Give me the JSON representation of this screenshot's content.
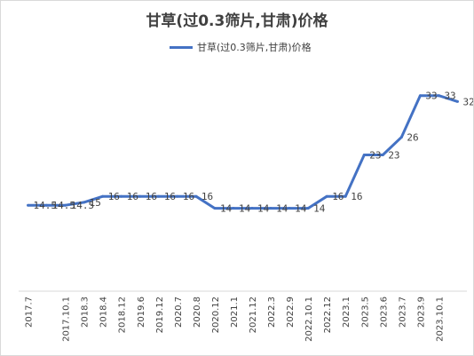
{
  "chart_data": {
    "type": "line",
    "title": "甘草(过0.3筛片,甘肃)价格",
    "xlabel": "",
    "ylabel": "",
    "grid": false,
    "legend_position": "top",
    "series": [
      {
        "name": "甘草(过0.3筛片,甘肃)价格",
        "color": "#4472C4",
        "values": [
          14.5,
          14.5,
          14.5,
          15,
          16,
          16,
          16,
          16,
          16,
          16,
          14,
          14,
          14,
          14,
          14,
          14,
          16,
          16,
          23,
          23,
          26,
          33,
          33,
          32
        ]
      }
    ],
    "point_labels": [
      "14.5",
      "14.5",
      "14.5",
      "15",
      "16",
      "16",
      "16",
      "16",
      "16",
      "16",
      "14",
      "14",
      "14",
      "14",
      "14",
      "14",
      "16",
      "16",
      "23",
      "23",
      "26",
      "33",
      "33",
      "32"
    ],
    "categories": [
      "2017.7",
      "",
      "2017.10.1",
      "2018.3",
      "2018.4",
      "2018.12",
      "2019.6",
      "2019.12",
      "2020.7",
      "2020.8",
      "2020.12",
      "2021.1",
      "2021.12",
      "2022.3",
      "2022.9",
      "2022.10.1",
      "2022.12",
      "2023.1",
      "2023.5",
      "2023.6",
      "2023.7",
      "2023.9",
      "2023.10.1",
      ""
    ],
    "ylim": [
      0,
      40
    ]
  }
}
